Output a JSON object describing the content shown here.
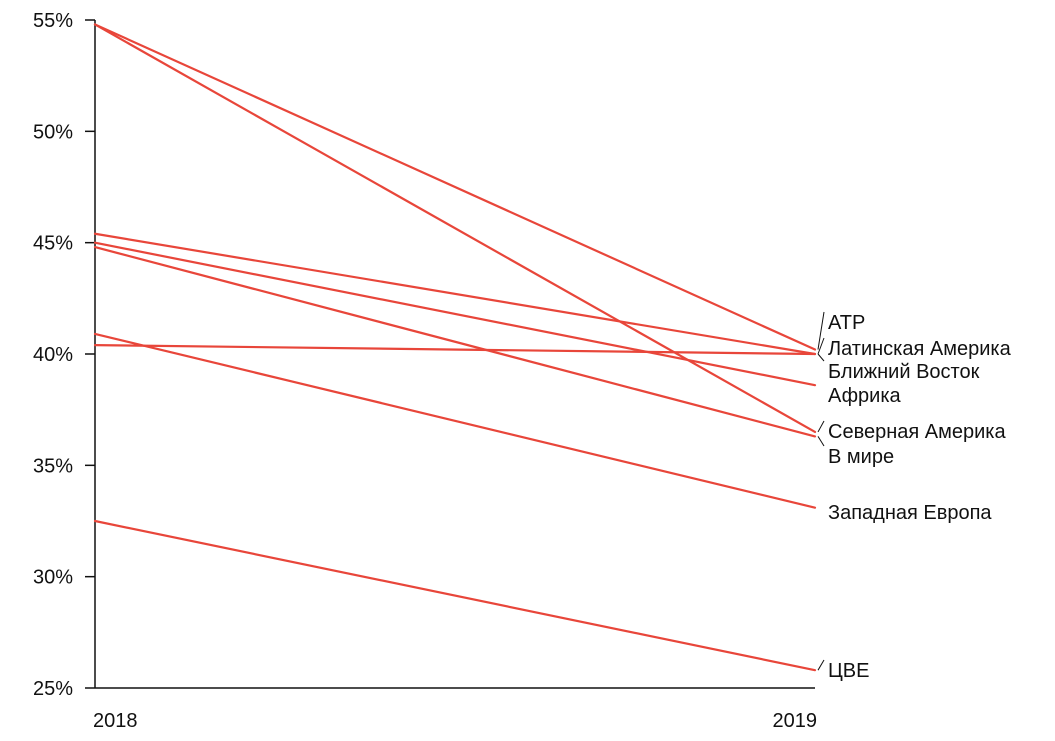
{
  "chart_data": {
    "type": "line",
    "x": [
      "2018",
      "2019"
    ],
    "ylim": [
      25,
      55
    ],
    "yticks": [
      55,
      50,
      45,
      40,
      35,
      30,
      25
    ],
    "ytick_labels": [
      "55%",
      "50%",
      "45%",
      "40%",
      "35%",
      "30%",
      "25%"
    ],
    "grid": false,
    "line_color": "#e8463a",
    "series": [
      {
        "name": "АТР",
        "values": [
          54.8,
          40.2
        ]
      },
      {
        "name": "Латинская Америка",
        "values": [
          45.4,
          40.0
        ]
      },
      {
        "name": "Ближний Восток",
        "values": [
          40.4,
          40.0
        ]
      },
      {
        "name": "Африка",
        "values": [
          45.0,
          38.6
        ]
      },
      {
        "name": "Северная Америка",
        "values": [
          54.8,
          36.5
        ]
      },
      {
        "name": "В мире",
        "values": [
          44.8,
          36.3
        ]
      },
      {
        "name": "Западная Европа",
        "values": [
          40.9,
          33.1
        ]
      },
      {
        "name": "ЦВЕ",
        "values": [
          32.5,
          25.8
        ]
      }
    ],
    "labels": [
      {
        "text": "АТР"
      },
      {
        "text": "Латинская Америка"
      },
      {
        "text": "Ближний Восток"
      },
      {
        "text": "Африка"
      },
      {
        "text": "Северная Америка"
      },
      {
        "text": "В мире"
      },
      {
        "text": "Западная Европа"
      },
      {
        "text": "ЦВЕ"
      }
    ]
  }
}
